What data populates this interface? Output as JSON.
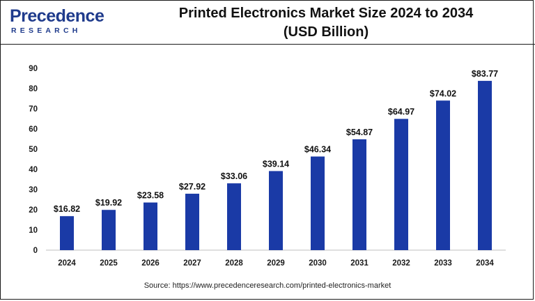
{
  "brand": {
    "name": "Precedence",
    "sub": "RESEARCH",
    "color": "#1f3b8c"
  },
  "title_line1": "Printed Electronics Market Size 2024 to 2034",
  "title_line2": "(USD Billion)",
  "source": "Source: https://www.precedenceresearch.com/printed-electronics-market",
  "chart_data": {
    "type": "bar",
    "categories": [
      "2024",
      "2025",
      "2026",
      "2027",
      "2028",
      "2029",
      "2030",
      "2031",
      "2032",
      "2033",
      "2034"
    ],
    "values": [
      16.82,
      19.92,
      23.58,
      27.92,
      33.06,
      39.14,
      46.34,
      54.87,
      64.97,
      74.02,
      83.77
    ],
    "data_labels": [
      "$16.82",
      "$19.92",
      "$23.58",
      "$27.92",
      "$33.06",
      "$39.14",
      "$46.34",
      "$54.87",
      "$64.97",
      "$74.02",
      "$83.77"
    ],
    "ylim": [
      0,
      90
    ],
    "yticks": [
      "0",
      "10",
      "20",
      "30",
      "40",
      "50",
      "60",
      "70",
      "80",
      "90"
    ],
    "grid": false,
    "bar_color": "#1a3aa6"
  }
}
